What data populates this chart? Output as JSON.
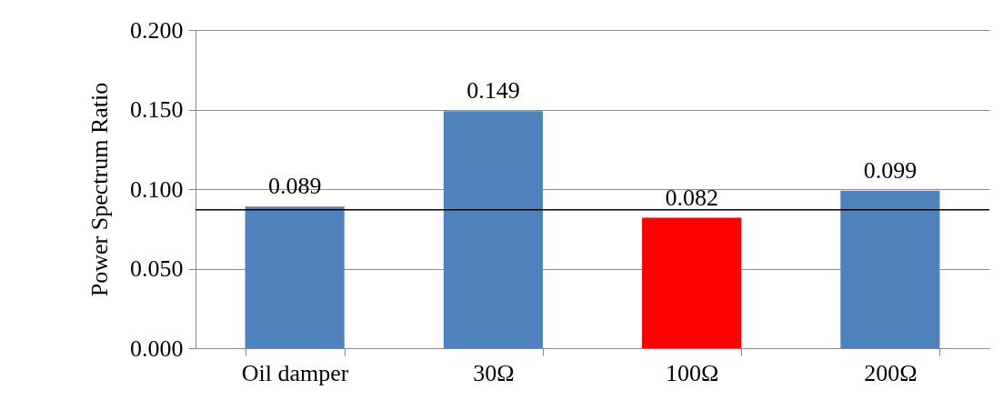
{
  "chart_data": {
    "type": "bar",
    "ylabel": "Power Spectrum Ratio",
    "categories": [
      "Oil damper",
      "30Ω",
      "100Ω",
      "200Ω"
    ],
    "values": [
      0.089,
      0.149,
      0.082,
      0.099
    ],
    "colors": [
      "#4f81bd",
      "#4f81bd",
      "#ff0000",
      "#4f81bd"
    ],
    "value_labels": [
      "0.089",
      "0.149",
      "0.082",
      "0.099"
    ],
    "ylim": [
      0,
      0.2
    ],
    "yticks": [
      {
        "value": 0,
        "label": "0.000"
      },
      {
        "value": 0.05,
        "label": "0.050"
      },
      {
        "value": 0.1,
        "label": "0.100"
      },
      {
        "value": 0.15,
        "label": "0.150"
      },
      {
        "value": 0.2,
        "label": "0.200"
      }
    ],
    "grid": "y",
    "ref_lines": [
      {
        "axis": "y",
        "value": 0.087,
        "color": "#000000"
      }
    ]
  }
}
